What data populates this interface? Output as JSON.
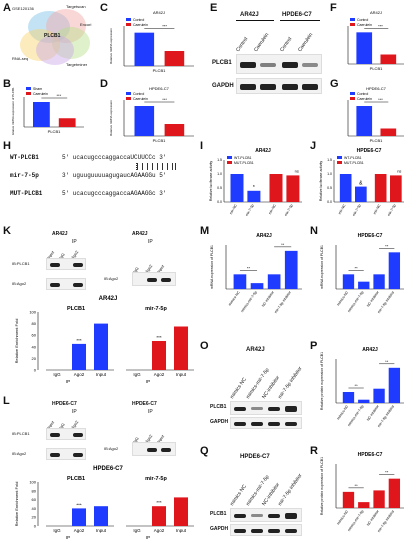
{
  "panels": {
    "A": {
      "label": "A",
      "sets": [
        "GSE120136",
        "Targetscan",
        "Encori",
        "RNA-seq",
        "Targetminer"
      ],
      "center": "PLCB1"
    },
    "B": {
      "label": "B",
      "legend": [
        "Sham",
        "Caerulein"
      ],
      "ylabel": "Relative mRNA expression of PLCB1",
      "xlabel": "PLCB1",
      "values": [
        1.0,
        0.35
      ],
      "sig": "***"
    },
    "C": {
      "label": "C",
      "title": "AR42J",
      "legend": [
        "Control",
        "Caerulein"
      ],
      "ylabel": "Relative mRNA expression",
      "xlabel": "PLCB1",
      "values": [
        1.0,
        0.45
      ],
      "sig": "***"
    },
    "D": {
      "label": "D",
      "title": "HPDE6-C7",
      "legend": [
        "Control",
        "Caerulein"
      ],
      "ylabel": "Relative mRNA expression",
      "xlabel": "PLCB1",
      "values": [
        1.0,
        0.4
      ],
      "sig": "***"
    },
    "E": {
      "label": "E",
      "groups": [
        "AR42J",
        "HPDE6-C7"
      ],
      "lanes": [
        "Control",
        "Caerulein",
        "Control",
        "Caerulein"
      ],
      "rows": [
        "PLCB1",
        "GAPDH"
      ]
    },
    "F": {
      "label": "F",
      "title": "AR42J",
      "legend": [
        "Control",
        "Caerulein"
      ],
      "xlabel": "PLCB1",
      "values": [
        1.0,
        0.3
      ],
      "sig": "***"
    },
    "G": {
      "label": "G",
      "title": "HPDE6-C7",
      "legend": [
        "Control",
        "Caerulein"
      ],
      "xlabel": "PLCB1",
      "values": [
        1.0,
        0.25
      ],
      "sig": "***"
    },
    "H": {
      "label": "H",
      "rows": [
        {
          "name": "WT-PLCB1",
          "seq": "5' ucacugcccaggaccaUCUUCCc 3'"
        },
        {
          "name": "mir-7-5p",
          "seq": "3' uguuguuuuagugaucAGAAGGu 5'"
        },
        {
          "name": "MUT-PLCB1",
          "seq": "5' ucacugcccaggaccaAGAAGGc 3'"
        }
      ]
    },
    "I": {
      "label": "I",
      "title": "AR42J",
      "legend": [
        "WT-PLCB1",
        "MUT-PLCB1"
      ],
      "ylabel": "Relative luciferase activity",
      "categories": [
        "mir-NC",
        "mir-7-5p",
        "mir-NC",
        "mir-7-5p"
      ],
      "values": [
        1.0,
        0.4,
        1.0,
        0.95
      ],
      "sig": [
        "*",
        "ns"
      ]
    },
    "J": {
      "label": "J",
      "title": "HPDE6-C7",
      "legend": [
        "WT-PLCB1",
        "MUT-PLCB1"
      ],
      "ylabel": "Relative luciferase activity",
      "categories": [
        "mir-NC",
        "mir-7-5p",
        "mir-NC",
        "mir-7-5p"
      ],
      "values": [
        1.0,
        0.55,
        1.0,
        0.95
      ],
      "sig": [
        "&",
        "ns"
      ]
    },
    "K": {
      "label": "K",
      "cell": "AR42J",
      "blot_rows": [
        "IB:PLCB1",
        "IB:Ago2"
      ],
      "lanes": [
        "Input",
        "IgG",
        "Ago2"
      ],
      "ip_label": "IP",
      "chart_title": "AR42J",
      "groups": [
        "PLCB1",
        "mir-7-5p"
      ],
      "categories": [
        "IgG",
        "Ago2",
        "Input"
      ],
      "ylabel": "Relative Enrichment Fold",
      "values": [
        [
          0,
          45,
          80
        ],
        [
          0,
          50,
          75
        ]
      ]
    },
    "L": {
      "label": "L",
      "cell": "HPDE6-C7",
      "blot_rows": [
        "IB:PLCB1",
        "IB:Ago2"
      ],
      "lanes": [
        "Input",
        "IgG",
        "Ago2"
      ],
      "ip_label": "IP",
      "chart_title": "HPDE6-C7",
      "groups": [
        "PLCB1",
        "mir-7-5p"
      ],
      "categories": [
        "IgG",
        "Ago2",
        "Input"
      ],
      "ylabel": "Relative Enrichment Fold",
      "values": [
        [
          0,
          40,
          45
        ],
        [
          0,
          45,
          65
        ]
      ]
    },
    "M": {
      "label": "M",
      "title": "AR42J",
      "ylabel": "mRNA expression of PLCB1",
      "categories": [
        "mimics-NC",
        "mimics-mir-7-5p",
        "NC-inhibitor",
        "mir-7-5p inhibitor"
      ],
      "values": [
        1.0,
        0.4,
        1.0,
        2.6
      ]
    },
    "N": {
      "label": "N",
      "title": "HPDE6-C7",
      "ylabel": "mRNA expression of PLCB1",
      "categories": [
        "mimics-NC",
        "mimics-mir-7-5p",
        "NC-inhibitor",
        "mir-7-5p inhibitor"
      ],
      "values": [
        1.0,
        0.5,
        1.0,
        2.5
      ]
    },
    "O": {
      "label": "O",
      "title": "AR42J",
      "lanes": [
        "mimics NC",
        "mimics-mir-7-5p",
        "NC-inhibitor",
        "mir-7-5p inhibitor"
      ],
      "rows": [
        "PLCB1",
        "GAPDH"
      ]
    },
    "P": {
      "label": "P",
      "title": "AR42J",
      "ylabel": "Relative protein expression of PLCB1",
      "categories": [
        "mimics-NC",
        "mimics-mir-7-5p",
        "NC-inhibitor",
        "mir-7-5p inhibitor"
      ],
      "values": [
        1.0,
        0.3,
        1.3,
        3.2
      ]
    },
    "Q": {
      "label": "Q",
      "title": "HPDE6-C7",
      "lanes": [
        "mimics NC",
        "mimics-mir-7-5p",
        "NC-inhibitor",
        "mir-7-5p inhibitor"
      ],
      "rows": [
        "PLCB1",
        "GAPDH"
      ]
    },
    "R": {
      "label": "R",
      "title": "HPDE6-C7",
      "ylabel": "Relative protein expression of PLCB1",
      "categories": [
        "mimics-NC",
        "mimics-mir-7-5p",
        "NC-inhibitor",
        "mir-7-5p inhibitor"
      ],
      "values": [
        0.55,
        0.2,
        0.6,
        1.0
      ]
    }
  },
  "colors": {
    "blue": "#1f3bff",
    "red": "#e0161d",
    "venn": [
      "#7ac0e6",
      "#f3a6a6",
      "#b6e08a",
      "#f8d36a",
      "#c9a6e6"
    ]
  }
}
